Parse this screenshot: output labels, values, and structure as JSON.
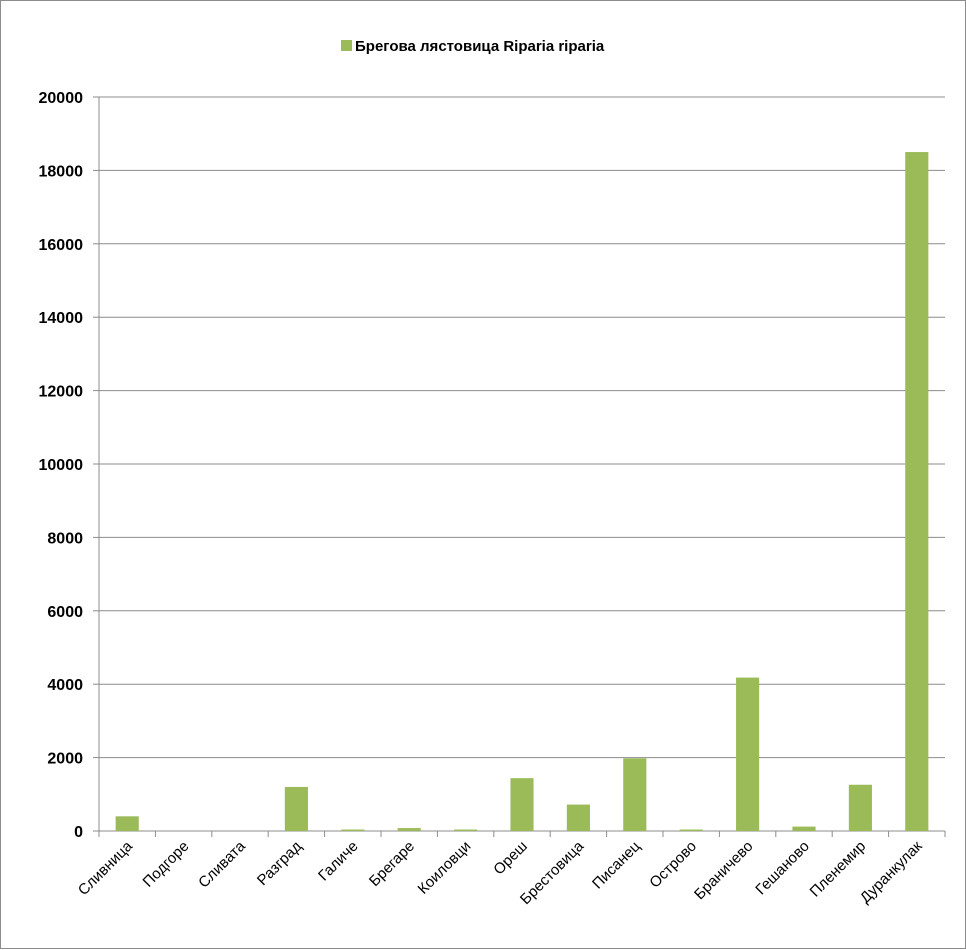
{
  "chart_data": {
    "type": "bar",
    "title": "",
    "xlabel": "",
    "ylabel": "",
    "ylim": [
      0,
      20000
    ],
    "y_ticks": [
      0,
      2000,
      4000,
      6000,
      8000,
      10000,
      12000,
      14000,
      16000,
      18000,
      20000
    ],
    "grid": true,
    "legend_position": "top",
    "categories": [
      "Сливница",
      "Подгоре",
      "Сливата",
      "Разград",
      "Галиче",
      "Брегаре",
      "Коиловци",
      "Ореш",
      "Брестовица",
      "Писанец",
      "Острово",
      "Браничево",
      "Гешаново",
      "Пленемир",
      "Дуранкулак"
    ],
    "series": [
      {
        "name": "Брегова лястовица Riparia riparia",
        "color": "#9bbb59",
        "values": [
          400,
          0,
          0,
          1200,
          40,
          80,
          40,
          1440,
          720,
          1980,
          40,
          4180,
          120,
          1260,
          18500
        ]
      }
    ]
  }
}
